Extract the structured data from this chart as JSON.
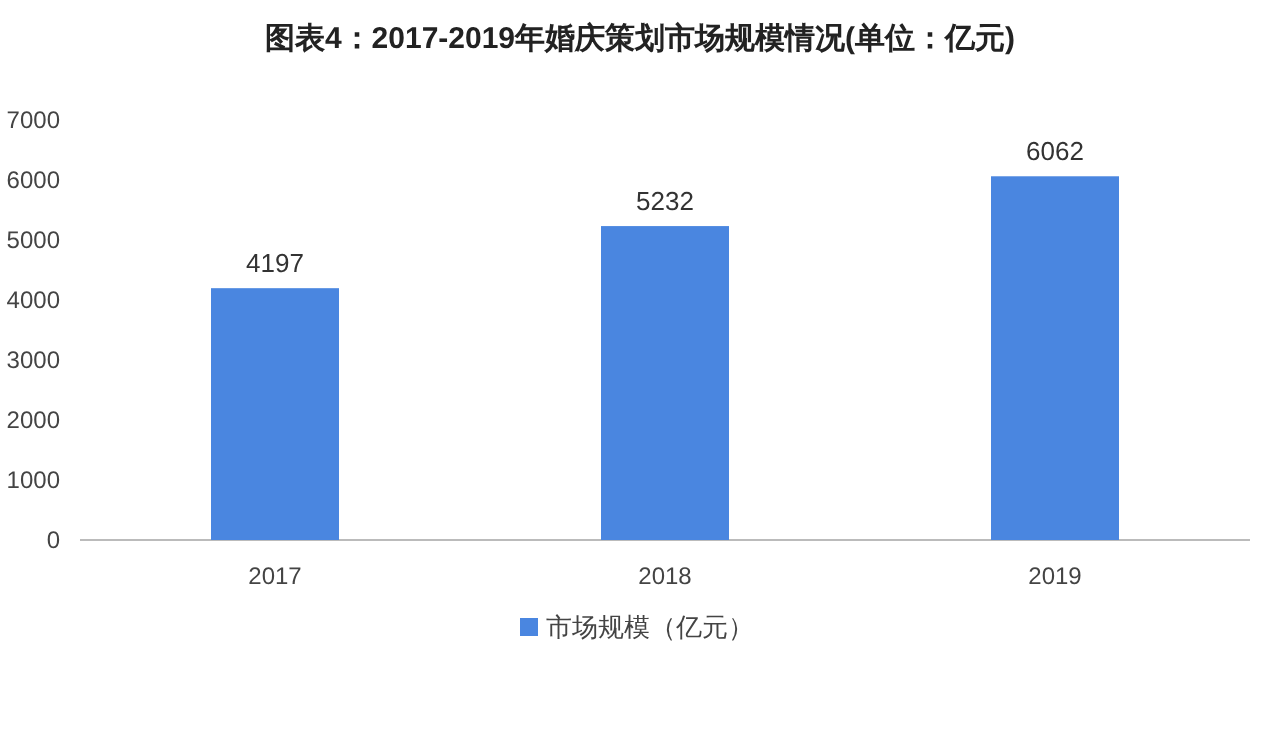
{
  "chart_data": {
    "type": "bar",
    "title": "图表4：2017-2019年婚庆策划市场规模情况(单位：亿元)",
    "categories": [
      "2017",
      "2018",
      "2019"
    ],
    "series": [
      {
        "name": "市场规模（亿元）",
        "color": "#4a86e0",
        "values": [
          4197,
          5232,
          6062
        ]
      }
    ],
    "ylim": [
      0,
      7000
    ],
    "yticks": [
      0,
      1000,
      2000,
      3000,
      4000,
      5000,
      6000,
      7000
    ],
    "data_labels": true,
    "legend": "bottom"
  }
}
